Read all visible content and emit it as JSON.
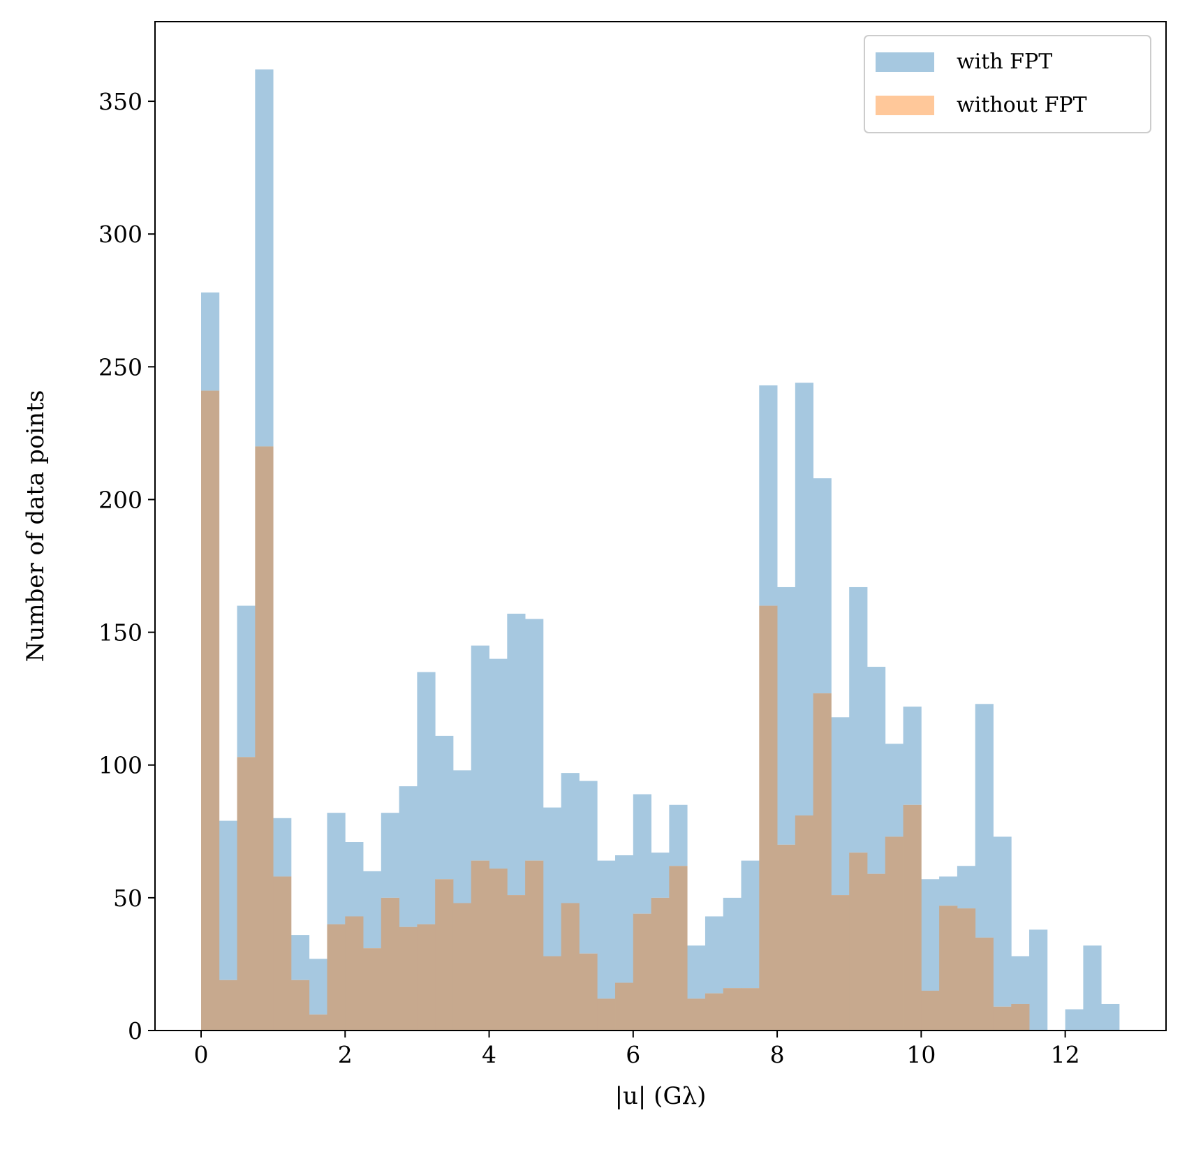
{
  "chart_data": {
    "type": "bar",
    "xlabel": "|u| (Gλ)",
    "ylabel": "Number of data points",
    "xlim": [
      -0.64,
      13.4
    ],
    "ylim": [
      0,
      380
    ],
    "xticks": [
      0,
      2,
      4,
      6,
      8,
      10,
      12
    ],
    "yticks": [
      0,
      50,
      100,
      150,
      200,
      250,
      300,
      350
    ],
    "bin_width": 0.25,
    "x": [
      0.0,
      0.25,
      0.5,
      0.75,
      1.0,
      1.25,
      1.5,
      1.75,
      2.0,
      2.25,
      2.5,
      2.75,
      3.0,
      3.25,
      3.5,
      3.75,
      4.0,
      4.25,
      4.5,
      4.75,
      5.0,
      5.25,
      5.5,
      5.75,
      6.0,
      6.25,
      6.5,
      6.75,
      7.0,
      7.25,
      7.5,
      7.75,
      8.0,
      8.25,
      8.5,
      8.75,
      9.0,
      9.25,
      9.5,
      9.75,
      10.0,
      10.25,
      10.5,
      10.75,
      11.0,
      11.25,
      11.5,
      11.75,
      12.0,
      12.25,
      12.5
    ],
    "legend_position": "top-right",
    "series": [
      {
        "name": "with FPT",
        "color": "#a6c8e0",
        "values": [
          278,
          79,
          160,
          362,
          80,
          36,
          27,
          82,
          71,
          60,
          82,
          92,
          135,
          111,
          98,
          145,
          140,
          157,
          155,
          84,
          97,
          94,
          64,
          66,
          89,
          67,
          85,
          32,
          43,
          50,
          64,
          243,
          167,
          244,
          208,
          118,
          167,
          137,
          108,
          122,
          57,
          58,
          62,
          123,
          73,
          28,
          38,
          0,
          8,
          32,
          10
        ]
      },
      {
        "name": "without FPT",
        "color": "#ffc89a",
        "values": [
          241,
          19,
          103,
          220,
          58,
          19,
          6,
          40,
          43,
          31,
          50,
          39,
          40,
          57,
          48,
          64,
          61,
          51,
          64,
          28,
          48,
          29,
          12,
          18,
          44,
          50,
          62,
          12,
          14,
          16,
          16,
          160,
          70,
          81,
          127,
          51,
          67,
          59,
          73,
          85,
          15,
          47,
          46,
          35,
          9,
          10,
          0,
          0,
          0,
          0,
          0
        ]
      }
    ],
    "overlap_color": "#c7a98e"
  }
}
